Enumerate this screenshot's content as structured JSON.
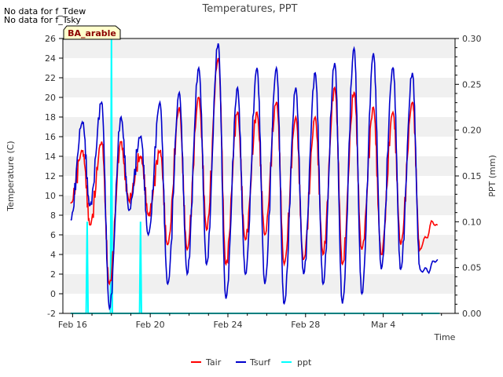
{
  "chart_data": {
    "type": "line",
    "title": "Temperatures, PPT",
    "notes": [
      "No data for f_Tdew",
      "No data for f_Tsky"
    ],
    "site_label": "BA_arable",
    "xlabel": "Time",
    "ylabel": "Temperature (C)",
    "y2label": "PPT (mm)",
    "xlim": [
      15.5,
      35.7
    ],
    "ylim": [
      -2,
      26
    ],
    "y2lim": [
      0.0,
      0.3
    ],
    "x_ticks": [
      {
        "value": 16,
        "label": "Feb 16"
      },
      {
        "value": 20,
        "label": "Feb 20"
      },
      {
        "value": 24,
        "label": "Feb 24"
      },
      {
        "value": 28,
        "label": "Feb 28"
      },
      {
        "value": 32,
        "label": "Mar 4"
      }
    ],
    "y_ticks": [
      -2,
      0,
      2,
      4,
      6,
      8,
      10,
      12,
      14,
      16,
      18,
      20,
      22,
      24,
      26
    ],
    "y2_ticks": [
      "0.00",
      "0.05",
      "0.10",
      "0.15",
      "0.20",
      "0.25",
      "0.30"
    ],
    "grid": "horizontal-bands",
    "legend_position": "bottom",
    "colors": {
      "Tair": "#ff0000",
      "Tsurf": "#0000cc",
      "ppt": "#00ffff"
    },
    "series": [
      {
        "name": "Tair",
        "axis": "left",
        "daily_min": [
          {
            "x": 15.9,
            "y": 9.2
          },
          {
            "x": 16.9,
            "y": 7.0
          },
          {
            "x": 17.9,
            "y": 1.0
          },
          {
            "x": 18.9,
            "y": 9.5
          },
          {
            "x": 19.9,
            "y": 8.0
          },
          {
            "x": 20.9,
            "y": 5.0
          },
          {
            "x": 21.9,
            "y": 4.5
          },
          {
            "x": 22.9,
            "y": 6.5
          },
          {
            "x": 23.9,
            "y": 3.0
          },
          {
            "x": 24.9,
            "y": 5.5
          },
          {
            "x": 25.9,
            "y": 6.0
          },
          {
            "x": 26.9,
            "y": 3.0
          },
          {
            "x": 27.9,
            "y": 3.5
          },
          {
            "x": 28.9,
            "y": 4.0
          },
          {
            "x": 29.9,
            "y": 3.0
          },
          {
            "x": 30.9,
            "y": 4.5
          },
          {
            "x": 31.9,
            "y": 4.0
          },
          {
            "x": 32.9,
            "y": 5.0
          },
          {
            "x": 33.9,
            "y": 4.5
          },
          {
            "x": 34.8,
            "y": 7.0
          }
        ],
        "daily_max": [
          {
            "x": 16.5,
            "y": 14.5
          },
          {
            "x": 17.5,
            "y": 15.5
          },
          {
            "x": 18.5,
            "y": 15.5
          },
          {
            "x": 19.5,
            "y": 14.0
          },
          {
            "x": 20.5,
            "y": 14.5
          },
          {
            "x": 21.5,
            "y": 19.0
          },
          {
            "x": 22.5,
            "y": 20.0
          },
          {
            "x": 23.5,
            "y": 24.0
          },
          {
            "x": 24.5,
            "y": 18.5
          },
          {
            "x": 25.5,
            "y": 18.5
          },
          {
            "x": 26.5,
            "y": 19.5
          },
          {
            "x": 27.5,
            "y": 18.0
          },
          {
            "x": 28.5,
            "y": 18.0
          },
          {
            "x": 29.5,
            "y": 21.0
          },
          {
            "x": 30.5,
            "y": 20.5
          },
          {
            "x": 31.5,
            "y": 19.0
          },
          {
            "x": 32.5,
            "y": 18.5
          },
          {
            "x": 33.5,
            "y": 19.5
          }
        ]
      },
      {
        "name": "Tsurf",
        "axis": "left",
        "daily_min": [
          {
            "x": 15.9,
            "y": 7.5
          },
          {
            "x": 16.9,
            "y": 9.0
          },
          {
            "x": 17.9,
            "y": -1.5
          },
          {
            "x": 18.9,
            "y": 8.5
          },
          {
            "x": 19.9,
            "y": 6.0
          },
          {
            "x": 20.9,
            "y": 1.0
          },
          {
            "x": 21.9,
            "y": 2.0
          },
          {
            "x": 22.9,
            "y": 3.0
          },
          {
            "x": 23.9,
            "y": -0.5
          },
          {
            "x": 24.9,
            "y": 2.0
          },
          {
            "x": 25.9,
            "y": 1.0
          },
          {
            "x": 26.9,
            "y": -1.0
          },
          {
            "x": 27.9,
            "y": 2.0
          },
          {
            "x": 28.9,
            "y": 1.0
          },
          {
            "x": 29.9,
            "y": -1.0
          },
          {
            "x": 30.9,
            "y": 0.0
          },
          {
            "x": 31.9,
            "y": 2.5
          },
          {
            "x": 32.9,
            "y": 2.5
          },
          {
            "x": 33.9,
            "y": 2.5
          },
          {
            "x": 34.8,
            "y": 3.5
          }
        ],
        "daily_max": [
          {
            "x": 16.5,
            "y": 17.5
          },
          {
            "x": 17.5,
            "y": 19.5
          },
          {
            "x": 18.5,
            "y": 18.0
          },
          {
            "x": 19.5,
            "y": 16.0
          },
          {
            "x": 20.5,
            "y": 19.5
          },
          {
            "x": 21.5,
            "y": 20.5
          },
          {
            "x": 22.5,
            "y": 23.0
          },
          {
            "x": 23.5,
            "y": 25.5
          },
          {
            "x": 24.5,
            "y": 21.0
          },
          {
            "x": 25.5,
            "y": 23.0
          },
          {
            "x": 26.5,
            "y": 23.0
          },
          {
            "x": 27.5,
            "y": 21.0
          },
          {
            "x": 28.5,
            "y": 22.5
          },
          {
            "x": 29.5,
            "y": 23.5
          },
          {
            "x": 30.5,
            "y": 25.0
          },
          {
            "x": 31.5,
            "y": 24.5
          },
          {
            "x": 32.5,
            "y": 23.0
          },
          {
            "x": 33.5,
            "y": 22.5
          }
        ]
      },
      {
        "name": "ppt",
        "axis": "right",
        "points": [
          {
            "x": 15.9,
            "y": 0.0
          },
          {
            "x": 16.7,
            "y": 0.0
          },
          {
            "x": 16.75,
            "y": 0.1
          },
          {
            "x": 16.8,
            "y": 0.0
          },
          {
            "x": 17.95,
            "y": 0.0
          },
          {
            "x": 18.0,
            "y": 0.3
          },
          {
            "x": 18.05,
            "y": 0.0
          },
          {
            "x": 19.45,
            "y": 0.0
          },
          {
            "x": 19.5,
            "y": 0.1
          },
          {
            "x": 19.55,
            "y": 0.0
          },
          {
            "x": 34.9,
            "y": 0.0
          }
        ]
      }
    ]
  }
}
